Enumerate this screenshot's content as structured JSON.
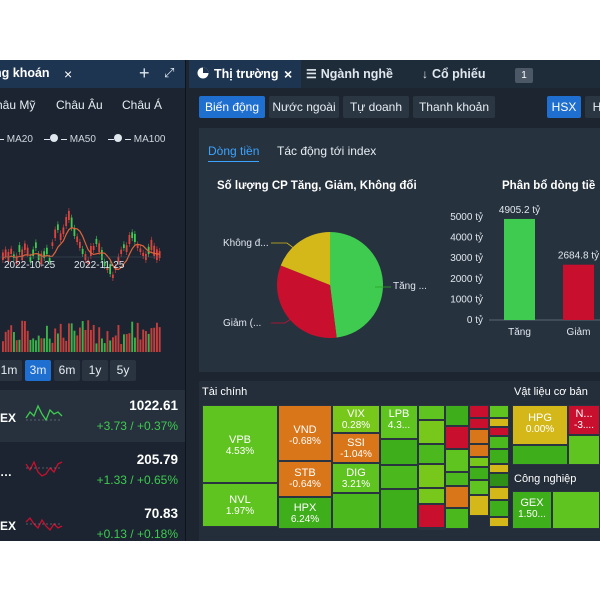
{
  "colors": {
    "accent": "#1f6fd1",
    "up": "#3ecb4f",
    "down": "#c8102e",
    "neutral": "#d4b81a",
    "background": "#1c2530"
  },
  "left_panel": {
    "tab_title": "ng khoán",
    "close_icon": "×",
    "plus_icon": "+",
    "expand_icon": "⤢",
    "regions": [
      "hâu Mỹ",
      "Châu Âu",
      "Châu Á"
    ],
    "ma_legend": [
      "MA20",
      "MA50",
      "MA100"
    ],
    "x_ticks": [
      "2022-10-25",
      "2022-11-25"
    ],
    "ranges": [
      "1m",
      "3m",
      "6m",
      "1y",
      "5y"
    ],
    "active_range": "3m",
    "indices": [
      {
        "name": "EX",
        "price": "1022.61",
        "change": "+3.73 / +0.37%"
      },
      {
        "name": "…",
        "price": "205.79",
        "change": "+1.33 / +0.65%"
      },
      {
        "name": "EX",
        "price": "70.83",
        "change": "+0.13 / +0.18%"
      }
    ]
  },
  "right_panel": {
    "tabs": [
      {
        "label": "Thị trường",
        "icon": "pie-chart-icon",
        "close": "×"
      },
      {
        "label": "Ngành nghề",
        "icon": "list-icon"
      },
      {
        "label": "Cổ phiếu",
        "icon": "sort-icon"
      }
    ],
    "badge": "1",
    "subnav": [
      "Biến động",
      "Nước ngoài",
      "Tự doanh",
      "Thanh khoản"
    ],
    "exchange": "HSX",
    "exchange_next": "H",
    "content_tabs": [
      "Dòng tiền",
      "Tác động tới index"
    ],
    "pie_title": "Số lượng CP Tăng, Giảm, Không đổi",
    "pie_labels": {
      "neutral": "Không đ...",
      "down": "Giảm (...",
      "up": "Tăng ..."
    },
    "bar_title": "Phân bổ dòng tiề"
  },
  "chart_data": [
    {
      "type": "pie",
      "title": "Số lượng CP Tăng, Giảm, Không đổi",
      "categories": [
        "Tăng",
        "Giảm",
        "Không đổi"
      ],
      "values": [
        48,
        33,
        19
      ]
    },
    {
      "type": "bar",
      "title": "Phân bổ dòng tiề",
      "categories": [
        "Tăng",
        "Giảm"
      ],
      "values": [
        4905.2,
        2684.8
      ],
      "value_labels": [
        "4905.2 tỷ",
        "2684.8 tỷ"
      ],
      "y_ticks": [
        "5000 tỷ",
        "4000 tỷ",
        "3000 tỷ",
        "2000 tỷ",
        "1000 tỷ",
        "0 tỷ"
      ],
      "ylim": [
        0,
        5000
      ]
    }
  ],
  "treemap": {
    "groups": [
      "Tài chính",
      "Vật liệu cơ bản",
      "Công nghiệp"
    ],
    "cells": [
      {
        "ticker": "VPB",
        "change": "4.53%"
      },
      {
        "ticker": "NVL",
        "change": "1.97%"
      },
      {
        "ticker": "VND",
        "change": "-0.68%"
      },
      {
        "ticker": "STB",
        "change": "-0.64%"
      },
      {
        "ticker": "HPX",
        "change": "6.24%"
      },
      {
        "ticker": "VIX",
        "change": "0.28%"
      },
      {
        "ticker": "SSI",
        "change": "-1.04%"
      },
      {
        "ticker": "DIG",
        "change": "3.21%"
      },
      {
        "ticker": "LPB",
        "change": "4.3..."
      },
      {
        "ticker": "HPG",
        "change": "0.00%"
      },
      {
        "ticker": "N...",
        "change": "-3...."
      },
      {
        "ticker": "GEX",
        "change": "1.50..."
      }
    ]
  }
}
